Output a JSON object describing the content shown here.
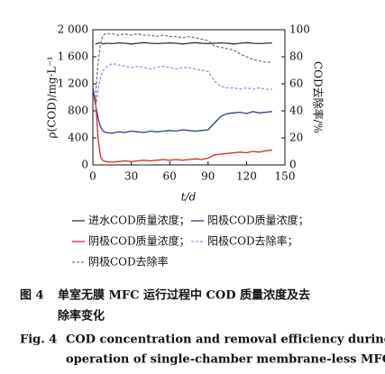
{
  "chart_data": {
    "type": "line",
    "x_label": "t/d",
    "y_label": "ρ(COD)/mg·L⁻¹",
    "y2_label": "COD去除率/%",
    "x": [
      0,
      2,
      4,
      6,
      8,
      10,
      15,
      20,
      25,
      30,
      35,
      40,
      45,
      50,
      55,
      60,
      65,
      70,
      75,
      80,
      85,
      90,
      95,
      100,
      105,
      110,
      115,
      120,
      125,
      130,
      135,
      140
    ],
    "xlim": [
      0,
      150
    ],
    "xticks": [
      0,
      30,
      60,
      90,
      120,
      150
    ],
    "ylim": [
      0,
      2000
    ],
    "yticks": [
      0,
      400,
      800,
      {
        "value": 1200,
        "label": "1 200"
      },
      {
        "value": 1600,
        "label": "1 600"
      },
      {
        "value": 2000,
        "label": "2 000"
      }
    ],
    "y2lim": [
      0,
      100
    ],
    "y2ticks": [
      0,
      20,
      40,
      60,
      80,
      100
    ],
    "series": [
      {
        "name": "进水COD质量浓度；",
        "color": "#333333",
        "dash": false,
        "axis": "y",
        "values": [
          null,
          1790,
          1800,
          1810,
          1790,
          1800,
          1795,
          1805,
          1800,
          1790,
          1800,
          1810,
          1800,
          1795,
          1800,
          1805,
          1800,
          1790,
          1800,
          1810,
          1800,
          1795,
          1800,
          1805,
          1800,
          1790,
          1800,
          1810,
          1800,
          1795,
          1800,
          1805
        ]
      },
      {
        "name": "阳极COD质量浓度；",
        "color": "#2b3d9a",
        "dash": false,
        "axis": "y",
        "values": [
          1150,
          900,
          700,
          560,
          500,
          480,
          470,
          490,
          480,
          500,
          490,
          480,
          500,
          490,
          500,
          510,
          500,
          520,
          510,
          500,
          510,
          520,
          620,
          720,
          760,
          770,
          780,
          760,
          790,
          770,
          780,
          790
        ]
      },
      {
        "name": "阴极COD质量浓度；",
        "color": "#d62828",
        "dash": false,
        "axis": "y",
        "values": [
          null,
          1000,
          400,
          120,
          60,
          50,
          40,
          50,
          60,
          50,
          60,
          70,
          60,
          70,
          80,
          70,
          80,
          70,
          80,
          90,
          80,
          100,
          150,
          160,
          170,
          180,
          190,
          180,
          200,
          190,
          210,
          220
        ]
      },
      {
        "name": "阳极COD去除率；",
        "color": "#9a8fd8",
        "dash": true,
        "axis": "y2",
        "values": [
          null,
          40,
          55,
          65,
          70,
          72,
          75,
          74,
          73,
          72,
          73,
          72,
          71,
          72,
          73,
          72,
          71,
          72,
          72,
          71,
          70,
          69,
          62,
          58,
          57,
          57,
          56,
          57,
          56,
          57,
          56,
          56
        ]
      },
      {
        "name": "阴极COD去除率",
        "color": "#777777",
        "dash": true,
        "axis": "y2",
        "values": [
          null,
          50,
          75,
          90,
          96,
          97,
          97,
          96,
          97,
          96,
          97,
          96,
          96,
          95,
          96,
          95,
          95,
          94,
          95,
          94,
          93,
          92,
          88,
          87,
          86,
          85,
          82,
          80,
          78,
          77,
          76,
          76
        ]
      }
    ]
  },
  "caption": {
    "cn_label": "图 4",
    "cn_lines": [
      "单室无膜 MFC 运行过程中 COD 质量浓度及去",
      "除率变化"
    ],
    "en_label": "Fig. 4",
    "en_lines": [
      "COD concentration and removal efficiency during",
      "operation of single-chamber membrane-less MFC"
    ]
  }
}
